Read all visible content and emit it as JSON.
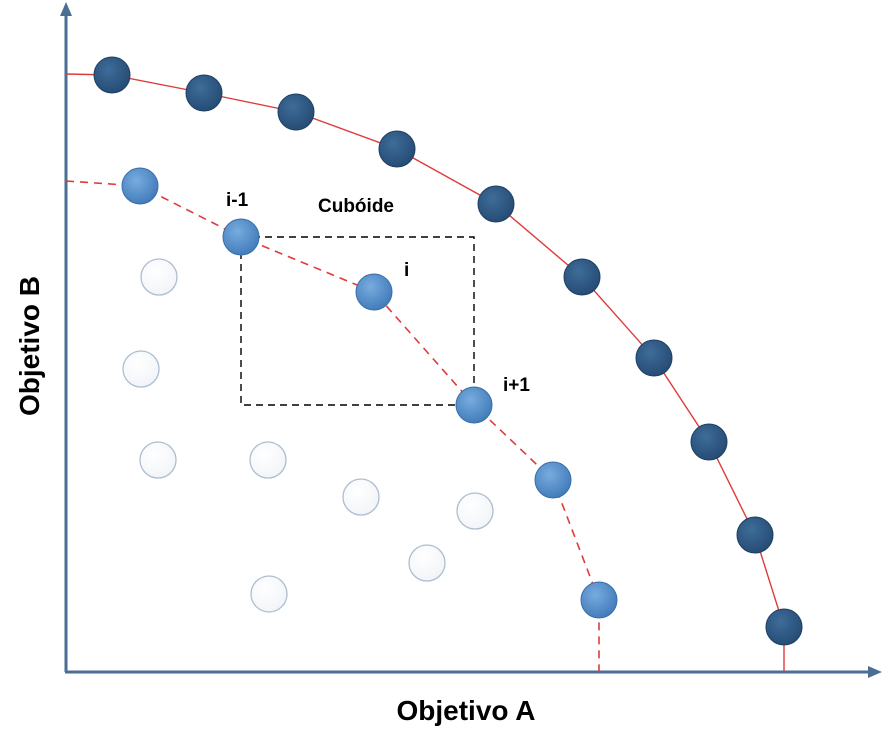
{
  "axes": {
    "x_title": "Objetivo A",
    "y_title": "Objetivo B"
  },
  "labels": {
    "cuboid": "Cubóide",
    "prev_point": "i-1",
    "current_point": "i",
    "next_point": "i+1"
  },
  "colors": {
    "axis": "#4a6f95",
    "front1_fill": "#2f5b86",
    "front2_fill": "#5b93cf",
    "curve": "#e03a3a",
    "cuboid_border": "#000000",
    "dominated_stroke": "#aebdd0"
  }
}
